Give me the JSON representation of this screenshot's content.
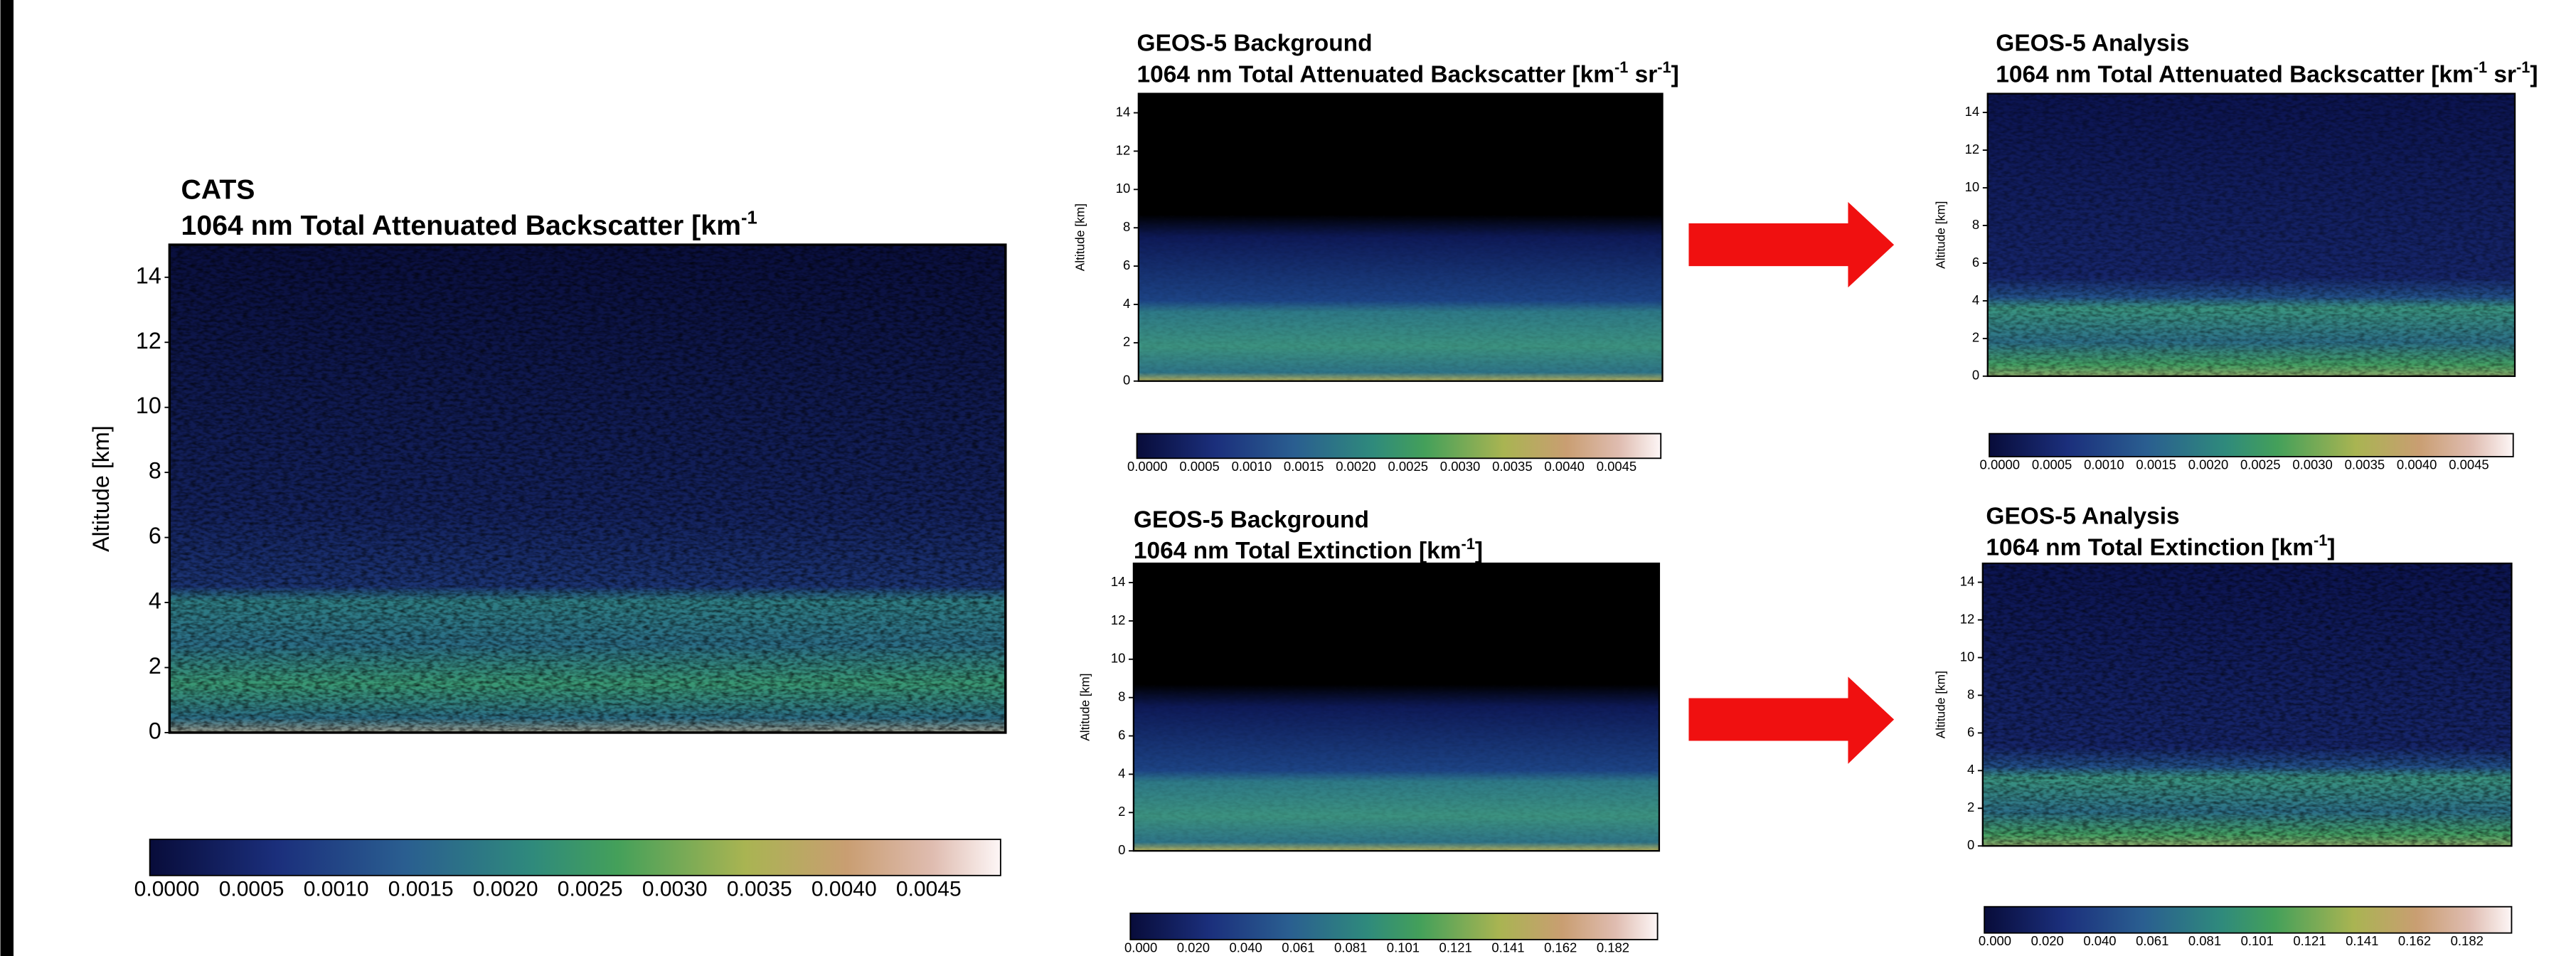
{
  "panels": [
    {
      "title": "CATS",
      "subtitle": [
        {
          "t": "1064 nm Total Attenuated Backscatter [km"
        },
        {
          "sup": "-1"
        }
      ],
      "y_label": "Altitude [km]",
      "y_ticks": [
        "0",
        "2",
        "4",
        "6",
        "8",
        "10",
        "12",
        "14"
      ],
      "colorbar_ticks": [
        "0.0000",
        "0.0005",
        "0.0010",
        "0.0015",
        "0.0020",
        "0.0025",
        "0.0030",
        "0.0035",
        "0.0040",
        "0.0045"
      ]
    },
    {
      "title": "GEOS-5 Background",
      "subtitle": [
        {
          "t": "1064 nm Total Attenuated Backscatter [km"
        },
        {
          "sup": "-1"
        },
        {
          "t": " sr"
        },
        {
          "sup": "-1"
        },
        {
          "t": "]"
        }
      ],
      "y_label": "Altitude [km]",
      "y_ticks": [
        "0",
        "2",
        "4",
        "6",
        "8",
        "10",
        "12",
        "14"
      ],
      "colorbar_ticks": [
        "0.0000",
        "0.0005",
        "0.0010",
        "0.0015",
        "0.0020",
        "0.0025",
        "0.0030",
        "0.0035",
        "0.0040",
        "0.0045"
      ]
    },
    {
      "title": "GEOS-5 Analysis",
      "subtitle": [
        {
          "t": "1064 nm Total Attenuated Backscatter [km"
        },
        {
          "sup": "-1"
        },
        {
          "t": " sr"
        },
        {
          "sup": "-1"
        },
        {
          "t": "]"
        }
      ],
      "y_label": "Altitude [km]",
      "y_ticks": [
        "0",
        "2",
        "4",
        "6",
        "8",
        "10",
        "12",
        "14"
      ],
      "colorbar_ticks": [
        "0.0000",
        "0.0005",
        "0.0010",
        "0.0015",
        "0.0020",
        "0.0025",
        "0.0030",
        "0.0035",
        "0.0040",
        "0.0045"
      ]
    },
    {
      "title": "GEOS-5 Background",
      "subtitle": [
        {
          "t": "1064 nm Total Extinction [km"
        },
        {
          "sup": "-1"
        },
        {
          "t": "]"
        }
      ],
      "y_label": "Altitude [km]",
      "y_ticks": [
        "0",
        "2",
        "4",
        "6",
        "8",
        "10",
        "12",
        "14"
      ],
      "colorbar_ticks": [
        "0.000",
        "0.020",
        "0.040",
        "0.061",
        "0.081",
        "0.101",
        "0.121",
        "0.141",
        "0.162",
        "0.182"
      ]
    },
    {
      "title": "GEOS-5 Analysis",
      "subtitle": [
        {
          "t": "1064 nm Total Extinction [km"
        },
        {
          "sup": "-1"
        },
        {
          "t": "]"
        }
      ],
      "y_label": "Altitude [km]",
      "y_ticks": [
        "0",
        "2",
        "4",
        "6",
        "8",
        "10",
        "12",
        "14"
      ],
      "colorbar_ticks": [
        "0.000",
        "0.020",
        "0.040",
        "0.061",
        "0.081",
        "0.101",
        "0.121",
        "0.141",
        "0.162",
        "0.182"
      ]
    }
  ]
}
